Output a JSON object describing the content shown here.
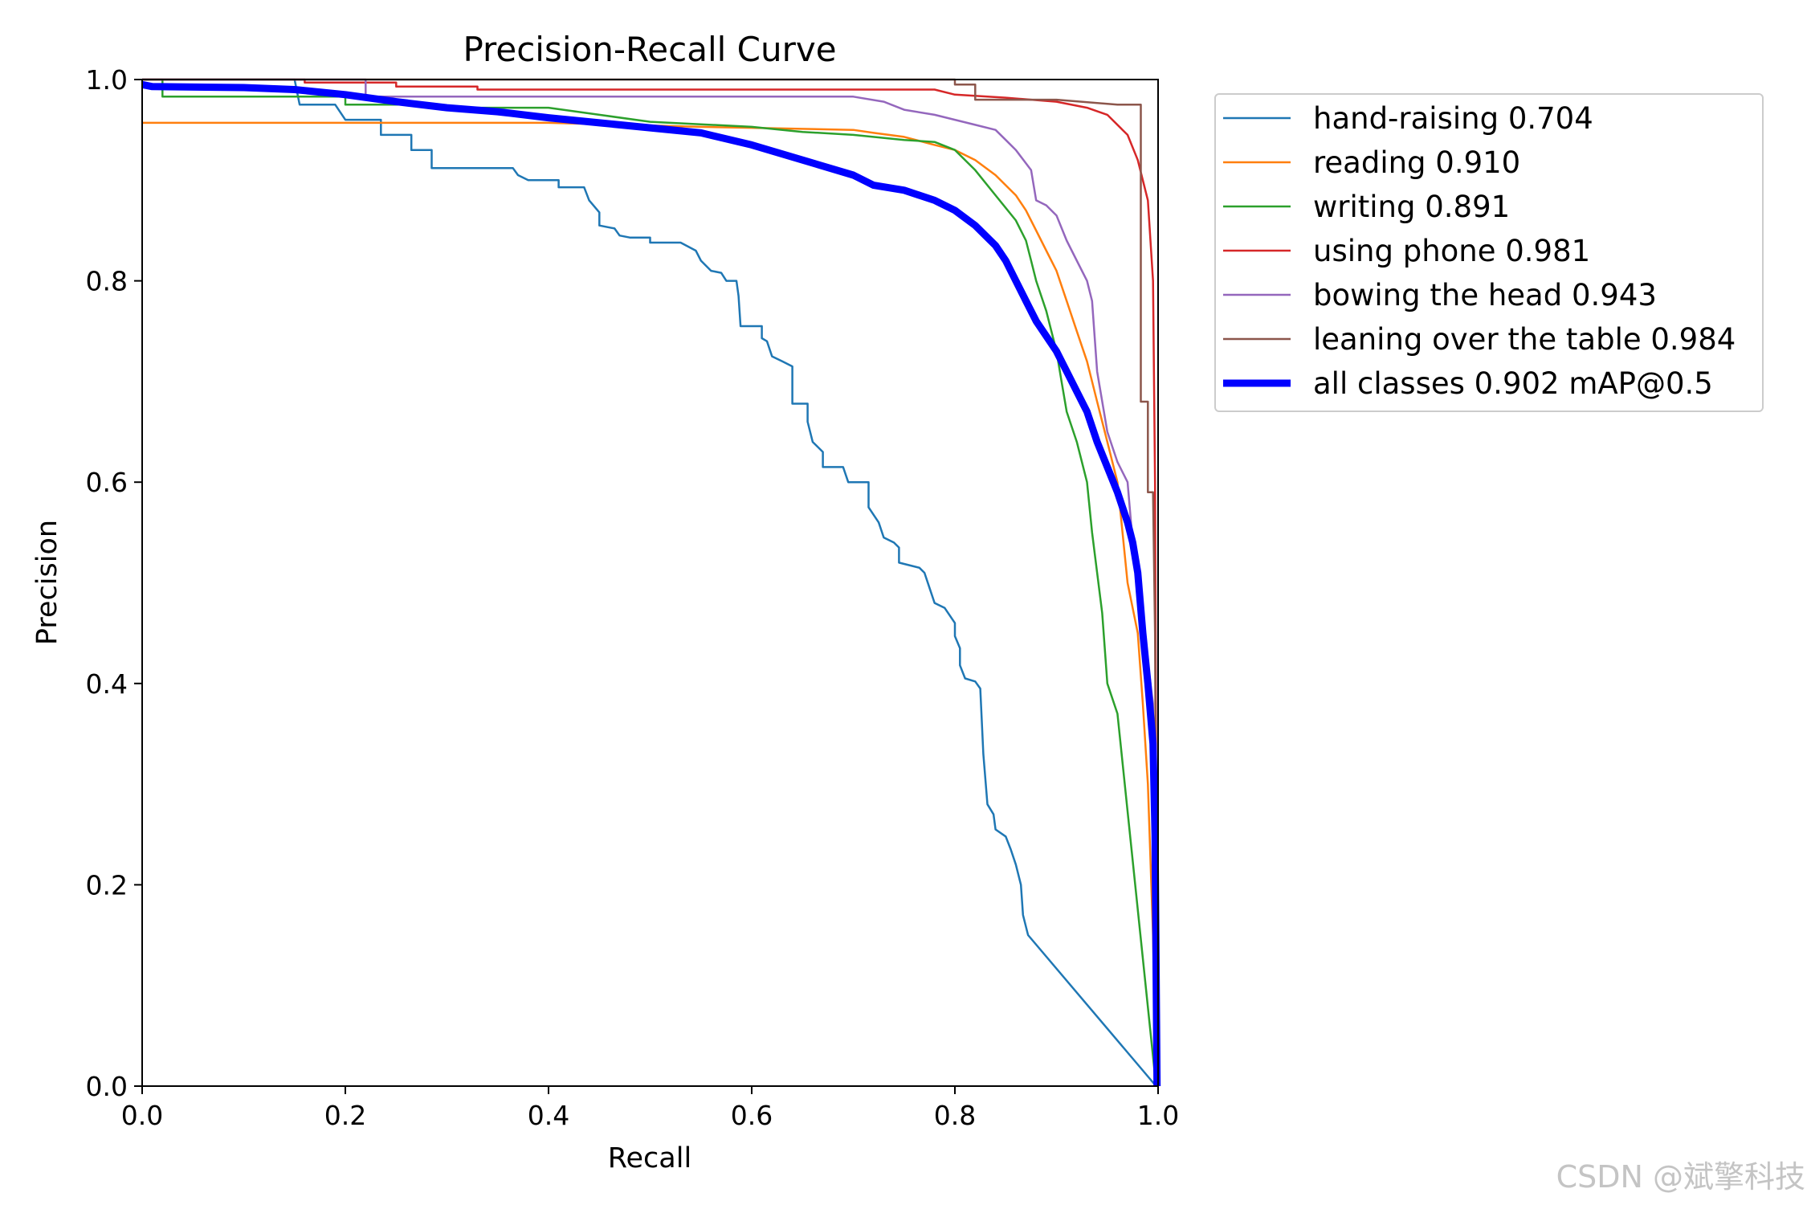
{
  "chart_data": {
    "type": "line",
    "title": "Precision-Recall Curve",
    "xlabel": "Recall",
    "ylabel": "Precision",
    "xlim": [
      0,
      1
    ],
    "ylim": [
      0,
      1
    ],
    "x_ticks": [
      "0.0",
      "0.2",
      "0.4",
      "0.6",
      "0.8",
      "1.0"
    ],
    "y_ticks": [
      "0.0",
      "0.2",
      "0.4",
      "0.6",
      "0.8",
      "1.0"
    ],
    "grid": false,
    "legend_position": "outside-upper-right",
    "series": [
      {
        "name": "hand-raising 0.704",
        "color": "#1f77b4",
        "line_width": "thin",
        "points": [
          [
            0,
            1.0
          ],
          [
            0.15,
            1.0
          ],
          [
            0.155,
            0.975
          ],
          [
            0.19,
            0.975
          ],
          [
            0.2,
            0.96
          ],
          [
            0.235,
            0.96
          ],
          [
            0.235,
            0.945
          ],
          [
            0.265,
            0.945
          ],
          [
            0.265,
            0.93
          ],
          [
            0.285,
            0.93
          ],
          [
            0.285,
            0.912
          ],
          [
            0.365,
            0.912
          ],
          [
            0.37,
            0.905
          ],
          [
            0.38,
            0.9
          ],
          [
            0.41,
            0.9
          ],
          [
            0.41,
            0.893
          ],
          [
            0.435,
            0.893
          ],
          [
            0.44,
            0.88
          ],
          [
            0.45,
            0.868
          ],
          [
            0.45,
            0.855
          ],
          [
            0.465,
            0.852
          ],
          [
            0.47,
            0.845
          ],
          [
            0.48,
            0.843
          ],
          [
            0.5,
            0.843
          ],
          [
            0.5,
            0.838
          ],
          [
            0.53,
            0.838
          ],
          [
            0.545,
            0.83
          ],
          [
            0.55,
            0.82
          ],
          [
            0.56,
            0.81
          ],
          [
            0.57,
            0.808
          ],
          [
            0.575,
            0.8
          ],
          [
            0.585,
            0.8
          ],
          [
            0.587,
            0.785
          ],
          [
            0.589,
            0.755
          ],
          [
            0.61,
            0.755
          ],
          [
            0.61,
            0.743
          ],
          [
            0.615,
            0.74
          ],
          [
            0.62,
            0.725
          ],
          [
            0.63,
            0.72
          ],
          [
            0.64,
            0.715
          ],
          [
            0.64,
            0.678
          ],
          [
            0.655,
            0.678
          ],
          [
            0.655,
            0.66
          ],
          [
            0.66,
            0.64
          ],
          [
            0.67,
            0.63
          ],
          [
            0.67,
            0.615
          ],
          [
            0.69,
            0.615
          ],
          [
            0.695,
            0.6
          ],
          [
            0.715,
            0.6
          ],
          [
            0.715,
            0.575
          ],
          [
            0.725,
            0.56
          ],
          [
            0.73,
            0.545
          ],
          [
            0.74,
            0.54
          ],
          [
            0.745,
            0.535
          ],
          [
            0.745,
            0.52
          ],
          [
            0.765,
            0.515
          ],
          [
            0.77,
            0.51
          ],
          [
            0.775,
            0.495
          ],
          [
            0.78,
            0.48
          ],
          [
            0.79,
            0.475
          ],
          [
            0.8,
            0.46
          ],
          [
            0.8,
            0.447
          ],
          [
            0.805,
            0.435
          ],
          [
            0.805,
            0.418
          ],
          [
            0.81,
            0.405
          ],
          [
            0.82,
            0.402
          ],
          [
            0.825,
            0.395
          ],
          [
            0.828,
            0.33
          ],
          [
            0.832,
            0.28
          ],
          [
            0.838,
            0.27
          ],
          [
            0.84,
            0.255
          ],
          [
            0.85,
            0.248
          ],
          [
            0.855,
            0.235
          ],
          [
            0.86,
            0.22
          ],
          [
            0.865,
            0.2
          ],
          [
            0.867,
            0.17
          ],
          [
            0.872,
            0.15
          ],
          [
            0.998,
            0.0
          ]
        ]
      },
      {
        "name": "reading 0.910",
        "color": "#ff7f0e",
        "line_width": "thin",
        "points": [
          [
            0,
            0.957
          ],
          [
            0.4,
            0.957
          ],
          [
            0.55,
            0.953
          ],
          [
            0.6,
            0.952
          ],
          [
            0.7,
            0.95
          ],
          [
            0.72,
            0.947
          ],
          [
            0.75,
            0.943
          ],
          [
            0.78,
            0.935
          ],
          [
            0.8,
            0.93
          ],
          [
            0.82,
            0.92
          ],
          [
            0.84,
            0.905
          ],
          [
            0.86,
            0.885
          ],
          [
            0.87,
            0.87
          ],
          [
            0.88,
            0.85
          ],
          [
            0.89,
            0.83
          ],
          [
            0.9,
            0.81
          ],
          [
            0.91,
            0.78
          ],
          [
            0.92,
            0.75
          ],
          [
            0.93,
            0.72
          ],
          [
            0.94,
            0.68
          ],
          [
            0.95,
            0.64
          ],
          [
            0.96,
            0.6
          ],
          [
            0.965,
            0.55
          ],
          [
            0.97,
            0.5
          ],
          [
            0.98,
            0.45
          ],
          [
            0.985,
            0.38
          ],
          [
            0.99,
            0.3
          ],
          [
            0.995,
            0.15
          ],
          [
            0.998,
            0.0
          ]
        ]
      },
      {
        "name": "writing 0.891",
        "color": "#2ca02c",
        "line_width": "thin",
        "points": [
          [
            0,
            1.0
          ],
          [
            0.02,
            1.0
          ],
          [
            0.02,
            0.983
          ],
          [
            0.2,
            0.983
          ],
          [
            0.2,
            0.975
          ],
          [
            0.29,
            0.975
          ],
          [
            0.29,
            0.972
          ],
          [
            0.4,
            0.972
          ],
          [
            0.45,
            0.965
          ],
          [
            0.5,
            0.958
          ],
          [
            0.6,
            0.953
          ],
          [
            0.65,
            0.948
          ],
          [
            0.7,
            0.945
          ],
          [
            0.75,
            0.94
          ],
          [
            0.78,
            0.938
          ],
          [
            0.8,
            0.93
          ],
          [
            0.82,
            0.91
          ],
          [
            0.84,
            0.885
          ],
          [
            0.86,
            0.86
          ],
          [
            0.87,
            0.84
          ],
          [
            0.875,
            0.82
          ],
          [
            0.88,
            0.8
          ],
          [
            0.89,
            0.77
          ],
          [
            0.9,
            0.73
          ],
          [
            0.905,
            0.7
          ],
          [
            0.91,
            0.67
          ],
          [
            0.92,
            0.64
          ],
          [
            0.93,
            0.6
          ],
          [
            0.935,
            0.55
          ],
          [
            0.94,
            0.51
          ],
          [
            0.945,
            0.47
          ],
          [
            0.95,
            0.4
          ],
          [
            0.96,
            0.37
          ],
          [
            0.998,
            0.0
          ]
        ]
      },
      {
        "name": "using phone 0.981",
        "color": "#d62728",
        "line_width": "thin",
        "points": [
          [
            0,
            1.0
          ],
          [
            0.16,
            1.0
          ],
          [
            0.16,
            0.997
          ],
          [
            0.25,
            0.997
          ],
          [
            0.25,
            0.993
          ],
          [
            0.33,
            0.993
          ],
          [
            0.33,
            0.99
          ],
          [
            0.5,
            0.99
          ],
          [
            0.6,
            0.99
          ],
          [
            0.7,
            0.99
          ],
          [
            0.78,
            0.99
          ],
          [
            0.8,
            0.985
          ],
          [
            0.85,
            0.982
          ],
          [
            0.9,
            0.978
          ],
          [
            0.93,
            0.972
          ],
          [
            0.95,
            0.965
          ],
          [
            0.97,
            0.945
          ],
          [
            0.98,
            0.92
          ],
          [
            0.99,
            0.88
          ],
          [
            0.995,
            0.8
          ],
          [
            0.997,
            0.6
          ],
          [
            0.998,
            0.3
          ],
          [
            0.999,
            0.0
          ]
        ]
      },
      {
        "name": "bowing the head 0.943",
        "color": "#9467bd",
        "line_width": "thin",
        "points": [
          [
            0,
            1.0
          ],
          [
            0.22,
            1.0
          ],
          [
            0.22,
            0.983
          ],
          [
            0.7,
            0.983
          ],
          [
            0.73,
            0.978
          ],
          [
            0.75,
            0.97
          ],
          [
            0.78,
            0.965
          ],
          [
            0.8,
            0.96
          ],
          [
            0.82,
            0.955
          ],
          [
            0.84,
            0.95
          ],
          [
            0.85,
            0.94
          ],
          [
            0.86,
            0.93
          ],
          [
            0.875,
            0.91
          ],
          [
            0.88,
            0.88
          ],
          [
            0.89,
            0.875
          ],
          [
            0.9,
            0.865
          ],
          [
            0.91,
            0.84
          ],
          [
            0.92,
            0.82
          ],
          [
            0.93,
            0.8
          ],
          [
            0.935,
            0.78
          ],
          [
            0.94,
            0.71
          ],
          [
            0.95,
            0.65
          ],
          [
            0.96,
            0.62
          ],
          [
            0.97,
            0.6
          ],
          [
            0.975,
            0.54
          ],
          [
            0.98,
            0.5
          ],
          [
            0.985,
            0.47
          ],
          [
            0.99,
            0.42
          ],
          [
            0.995,
            0.38
          ],
          [
            0.998,
            0.2
          ],
          [
            0.999,
            0.0
          ]
        ]
      },
      {
        "name": "leaning over the table 0.984",
        "color": "#8c564b",
        "line_width": "thin",
        "points": [
          [
            0,
            1.0
          ],
          [
            0.8,
            1.0
          ],
          [
            0.8,
            0.995
          ],
          [
            0.82,
            0.995
          ],
          [
            0.82,
            0.98
          ],
          [
            0.9,
            0.98
          ],
          [
            0.96,
            0.975
          ],
          [
            0.983,
            0.975
          ],
          [
            0.983,
            0.68
          ],
          [
            0.99,
            0.68
          ],
          [
            0.99,
            0.59
          ],
          [
            0.995,
            0.59
          ],
          [
            0.997,
            0.45
          ],
          [
            0.999,
            0.0
          ]
        ]
      },
      {
        "name": "all classes 0.902 mAP@0.5",
        "color": "#0000ff",
        "line_width": "thick",
        "points": [
          [
            0,
            0.995
          ],
          [
            0.01,
            0.993
          ],
          [
            0.1,
            0.992
          ],
          [
            0.15,
            0.99
          ],
          [
            0.2,
            0.985
          ],
          [
            0.25,
            0.978
          ],
          [
            0.3,
            0.972
          ],
          [
            0.35,
            0.968
          ],
          [
            0.4,
            0.962
          ],
          [
            0.45,
            0.957
          ],
          [
            0.5,
            0.952
          ],
          [
            0.55,
            0.947
          ],
          [
            0.6,
            0.935
          ],
          [
            0.65,
            0.92
          ],
          [
            0.7,
            0.905
          ],
          [
            0.72,
            0.895
          ],
          [
            0.75,
            0.89
          ],
          [
            0.78,
            0.88
          ],
          [
            0.8,
            0.87
          ],
          [
            0.82,
            0.855
          ],
          [
            0.84,
            0.835
          ],
          [
            0.85,
            0.82
          ],
          [
            0.86,
            0.8
          ],
          [
            0.87,
            0.78
          ],
          [
            0.88,
            0.76
          ],
          [
            0.9,
            0.73
          ],
          [
            0.91,
            0.71
          ],
          [
            0.92,
            0.69
          ],
          [
            0.93,
            0.67
          ],
          [
            0.94,
            0.64
          ],
          [
            0.95,
            0.615
          ],
          [
            0.96,
            0.59
          ],
          [
            0.97,
            0.56
          ],
          [
            0.975,
            0.54
          ],
          [
            0.98,
            0.51
          ],
          [
            0.985,
            0.45
          ],
          [
            0.99,
            0.4
          ],
          [
            0.995,
            0.34
          ],
          [
            0.997,
            0.25
          ],
          [
            0.999,
            0.0
          ]
        ]
      }
    ]
  },
  "watermark": "CSDN @斌擎科技"
}
